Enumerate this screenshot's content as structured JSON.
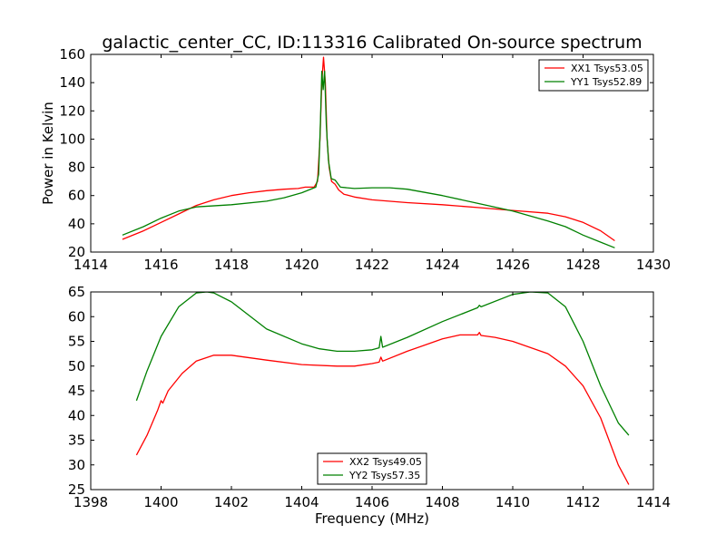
{
  "title": "galactic_center_CC, ID:113316 Calibrated On-source spectrum",
  "colors": {
    "red": "#ff0000",
    "green": "#008000",
    "axis": "#000000",
    "bg": "#ffffff"
  },
  "chart_data": [
    {
      "type": "line",
      "title": "galactic_center_CC, ID:113316 Calibrated On-source spectrum",
      "xlabel": "",
      "ylabel": "Power in Kelvin",
      "xlim": [
        1414,
        1430
      ],
      "ylim": [
        20,
        160
      ],
      "xticks": [
        1414,
        1416,
        1418,
        1420,
        1422,
        1424,
        1426,
        1428,
        1430
      ],
      "yticks": [
        20,
        40,
        60,
        80,
        100,
        120,
        140,
        160
      ],
      "grid": false,
      "legend_position": "top-right",
      "series": [
        {
          "name": "XX1 Tsys53.05",
          "color": "#ff0000",
          "points": [
            [
              1414.9,
              29
            ],
            [
              1415.5,
              35
            ],
            [
              1416.0,
              41
            ],
            [
              1416.5,
              47
            ],
            [
              1417.0,
              53
            ],
            [
              1417.5,
              57
            ],
            [
              1418.0,
              60
            ],
            [
              1418.5,
              62
            ],
            [
              1419.0,
              63.5
            ],
            [
              1419.5,
              64.5
            ],
            [
              1419.9,
              65
            ],
            [
              1420.1,
              66
            ],
            [
              1420.35,
              66
            ],
            [
              1420.45,
              70
            ],
            [
              1420.52,
              100
            ],
            [
              1420.57,
              140
            ],
            [
              1420.62,
              158
            ],
            [
              1420.67,
              140
            ],
            [
              1420.72,
              100
            ],
            [
              1420.78,
              80
            ],
            [
              1420.85,
              70
            ],
            [
              1420.95,
              68
            ],
            [
              1421.05,
              64
            ],
            [
              1421.2,
              61
            ],
            [
              1421.5,
              59
            ],
            [
              1422.0,
              57
            ],
            [
              1423.0,
              55
            ],
            [
              1424.0,
              53.5
            ],
            [
              1425.0,
              51.5
            ],
            [
              1426.0,
              49.5
            ],
            [
              1427.0,
              47.5
            ],
            [
              1427.5,
              45
            ],
            [
              1428.0,
              41
            ],
            [
              1428.5,
              35
            ],
            [
              1428.9,
              28
            ]
          ]
        },
        {
          "name": "YY1 Tsys52.89",
          "color": "#008000",
          "points": [
            [
              1414.9,
              32
            ],
            [
              1415.5,
              38
            ],
            [
              1416.0,
              44
            ],
            [
              1416.5,
              49
            ],
            [
              1417.0,
              52
            ],
            [
              1418.0,
              53.5
            ],
            [
              1419.0,
              56
            ],
            [
              1419.5,
              58.5
            ],
            [
              1420.0,
              62
            ],
            [
              1420.2,
              64
            ],
            [
              1420.4,
              66
            ],
            [
              1420.48,
              75
            ],
            [
              1420.53,
              110
            ],
            [
              1420.57,
              148
            ],
            [
              1420.61,
              135
            ],
            [
              1420.65,
              148
            ],
            [
              1420.7,
              110
            ],
            [
              1420.76,
              85
            ],
            [
              1420.84,
              72
            ],
            [
              1420.95,
              71
            ],
            [
              1421.1,
              66
            ],
            [
              1421.5,
              65
            ],
            [
              1422.0,
              65.5
            ],
            [
              1422.5,
              65.5
            ],
            [
              1423.0,
              64.5
            ],
            [
              1424.0,
              60
            ],
            [
              1425.0,
              54.5
            ],
            [
              1426.0,
              49
            ],
            [
              1427.0,
              42
            ],
            [
              1427.5,
              38
            ],
            [
              1428.0,
              32
            ],
            [
              1428.5,
              27
            ],
            [
              1428.9,
              23
            ]
          ]
        }
      ]
    },
    {
      "type": "line",
      "title": "",
      "xlabel": "Frequency (MHz)",
      "ylabel": "",
      "xlim": [
        1398,
        1414
      ],
      "ylim": [
        25,
        65
      ],
      "xticks": [
        1398,
        1400,
        1402,
        1404,
        1406,
        1408,
        1410,
        1412,
        1414
      ],
      "yticks": [
        25,
        30,
        35,
        40,
        45,
        50,
        55,
        60,
        65
      ],
      "grid": false,
      "legend_position": "bottom-center",
      "series": [
        {
          "name": "XX2 Tsys49.05",
          "color": "#ff0000",
          "points": [
            [
              1399.3,
              32
            ],
            [
              1399.6,
              36
            ],
            [
              1399.9,
              41
            ],
            [
              1400.0,
              43
            ],
            [
              1400.05,
              42.5
            ],
            [
              1400.2,
              45
            ],
            [
              1400.6,
              48.5
            ],
            [
              1401.0,
              51
            ],
            [
              1401.5,
              52.2
            ],
            [
              1402.0,
              52.2
            ],
            [
              1403.0,
              51.2
            ],
            [
              1404.0,
              50.3
            ],
            [
              1405.0,
              50
            ],
            [
              1405.5,
              50
            ],
            [
              1406.0,
              50.5
            ],
            [
              1406.2,
              50.8
            ],
            [
              1406.25,
              51.8
            ],
            [
              1406.3,
              51
            ],
            [
              1407.0,
              53
            ],
            [
              1408.0,
              55.5
            ],
            [
              1408.5,
              56.3
            ],
            [
              1409.0,
              56.3
            ],
            [
              1409.05,
              56.8
            ],
            [
              1409.1,
              56.2
            ],
            [
              1409.5,
              55.8
            ],
            [
              1410.0,
              55
            ],
            [
              1411.0,
              52.5
            ],
            [
              1411.5,
              50
            ],
            [
              1412.0,
              46
            ],
            [
              1412.5,
              39.5
            ],
            [
              1413.0,
              30
            ],
            [
              1413.3,
              26
            ]
          ]
        },
        {
          "name": "YY2 Tsys57.35",
          "color": "#008000",
          "points": [
            [
              1399.3,
              43
            ],
            [
              1399.6,
              49
            ],
            [
              1400.0,
              56
            ],
            [
              1400.5,
              62
            ],
            [
              1401.0,
              64.8
            ],
            [
              1401.3,
              65
            ],
            [
              1401.5,
              64.8
            ],
            [
              1402.0,
              63
            ],
            [
              1403.0,
              57.5
            ],
            [
              1404.0,
              54.5
            ],
            [
              1404.5,
              53.5
            ],
            [
              1405.0,
              53
            ],
            [
              1405.5,
              53
            ],
            [
              1406.0,
              53.3
            ],
            [
              1406.2,
              53.7
            ],
            [
              1406.25,
              56
            ],
            [
              1406.3,
              53.8
            ],
            [
              1407.0,
              55.8
            ],
            [
              1408.0,
              59
            ],
            [
              1409.0,
              61.8
            ],
            [
              1409.05,
              62.3
            ],
            [
              1409.1,
              62
            ],
            [
              1410.0,
              64.5
            ],
            [
              1410.5,
              65
            ],
            [
              1411.0,
              64.8
            ],
            [
              1411.5,
              62
            ],
            [
              1412.0,
              55
            ],
            [
              1412.5,
              46
            ],
            [
              1413.0,
              38.5
            ],
            [
              1413.3,
              36
            ]
          ]
        }
      ]
    }
  ]
}
